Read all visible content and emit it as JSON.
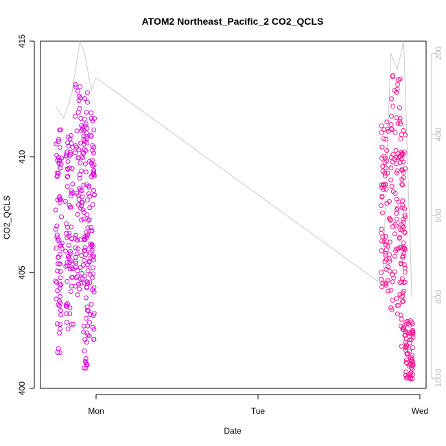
{
  "chart_data": {
    "type": "scatter",
    "title": "ATOM2 Northeast_Pacific_2 CO2_QCLS",
    "xlabel": "Date",
    "ylabel": "CO2_QCLS",
    "x_ticks": [
      "Mon",
      "Tue",
      "Wed"
    ],
    "ylim": [
      400,
      415
    ],
    "y_ticks": [
      400,
      405,
      410,
      415
    ],
    "y2lim": [
      1025,
      170
    ],
    "y2_ticks": [
      200,
      400,
      600,
      800,
      1000
    ],
    "grid": false,
    "legend": "none",
    "colors": {
      "points_a": "#dd00dd",
      "points_b": "#ff1493",
      "line": "#c8c8c8",
      "axis": "#000000",
      "secondary_axis": "#bbbbbb"
    },
    "series": [
      {
        "role": "points",
        "clusters": [
          {
            "x": [
              -0.25,
              -0.21
            ],
            "y": [
              401.5,
              411.2
            ],
            "color": "points_a"
          },
          {
            "x": [
              -0.19,
              -0.14
            ],
            "y": [
              402.5,
              411.0
            ],
            "color": "points_a"
          },
          {
            "x": [
              -0.13,
              -0.08
            ],
            "y": [
              404.0,
              413.2
            ],
            "color": "points_a"
          },
          {
            "x": [
              -0.08,
              -0.05
            ],
            "y": [
              400.8,
              412.8
            ],
            "color": "points_a"
          },
          {
            "x": [
              -0.05,
              -0.01
            ],
            "y": [
              402.0,
              412.0
            ],
            "color": "points_a"
          },
          {
            "x": [
              1.76,
              1.82
            ],
            "y": [
              404.2,
              412.0
            ],
            "color": "points_b"
          },
          {
            "x": [
              1.82,
              1.88
            ],
            "y": [
              403.0,
              413.8
            ],
            "color": "points_b"
          },
          {
            "x": [
              1.88,
              1.91
            ],
            "y": [
              401.8,
              411.5
            ],
            "color": "points_b"
          },
          {
            "x": [
              1.91,
              1.96
            ],
            "y": [
              400.4,
              403.0
            ],
            "color": "points_b"
          }
        ]
      },
      {
        "role": "right-axis-line",
        "x": [
          -0.25,
          -0.2,
          -0.15,
          -0.1,
          -0.07,
          -0.03,
          0.0,
          1.77,
          1.82,
          1.86,
          1.9,
          1.95
        ],
        "y": [
          330,
          360,
          300,
          170,
          200,
          290,
          260,
          770,
          200,
          240,
          170,
          800
        ]
      }
    ]
  }
}
